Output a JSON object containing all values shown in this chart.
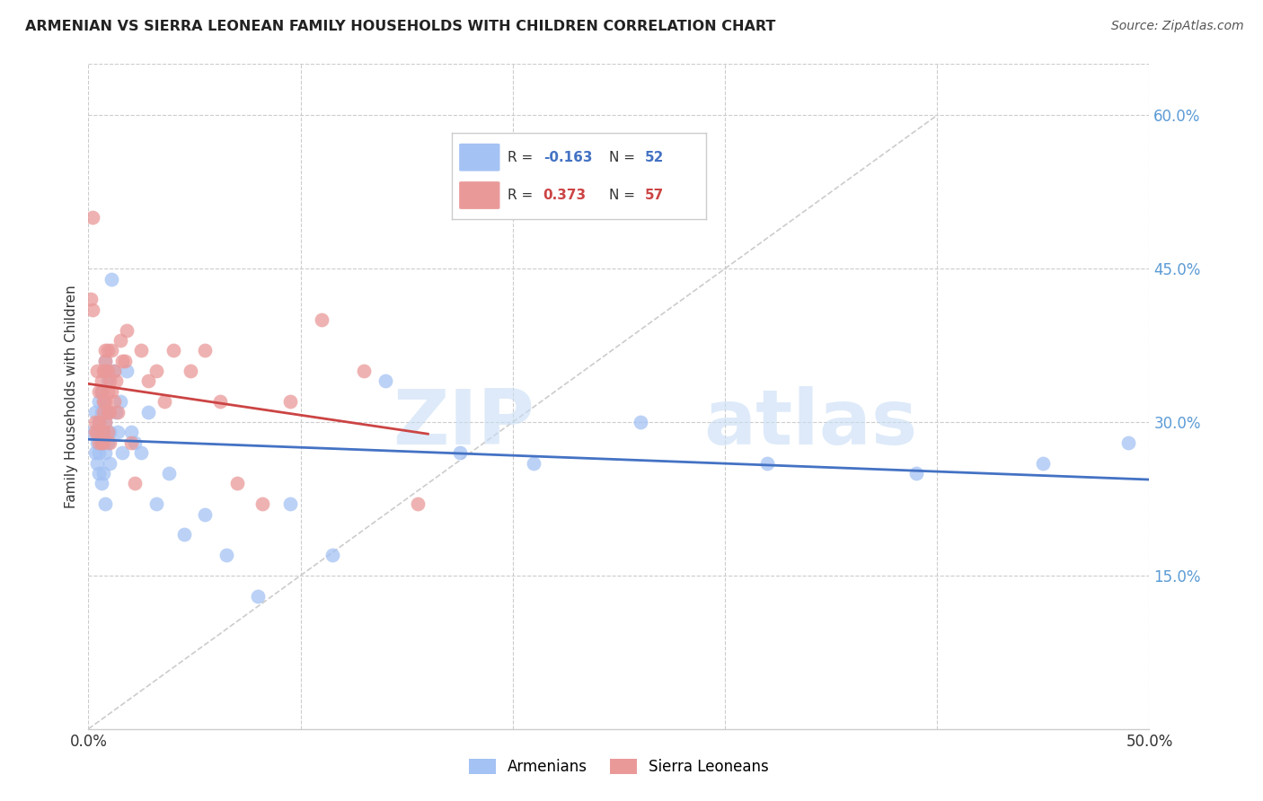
{
  "title": "ARMENIAN VS SIERRA LEONEAN FAMILY HOUSEHOLDS WITH CHILDREN CORRELATION CHART",
  "source": "Source: ZipAtlas.com",
  "ylabel": "Family Households with Children",
  "xlim": [
    0.0,
    0.5
  ],
  "ylim": [
    0.0,
    0.65
  ],
  "xtick_positions": [
    0.0,
    0.1,
    0.2,
    0.3,
    0.4,
    0.5
  ],
  "xtick_labels": [
    "0.0%",
    "",
    "",
    "",
    "",
    "50.0%"
  ],
  "ytick_vals": [
    0.15,
    0.3,
    0.45,
    0.6
  ],
  "ytick_labels": [
    "15.0%",
    "30.0%",
    "45.0%",
    "60.0%"
  ],
  "background_color": "#ffffff",
  "grid_color": "#cccccc",
  "watermark_line1": "ZIP",
  "watermark_line2": "atlas",
  "watermark_color": "#d8e8f5",
  "armenian_color": "#a4c2f4",
  "sierra_color": "#ea9999",
  "armenian_line_color": "#4472c4",
  "sierra_line_color": "#cc4444",
  "ref_line_color": "#cccccc",
  "legend_r_armenian": "-0.163",
  "legend_n_armenian": "52",
  "legend_r_sierra": "0.373",
  "legend_n_sierra": "57",
  "armenian_x": [
    0.002,
    0.003,
    0.003,
    0.004,
    0.004,
    0.005,
    0.005,
    0.005,
    0.005,
    0.006,
    0.006,
    0.006,
    0.006,
    0.007,
    0.007,
    0.007,
    0.008,
    0.008,
    0.008,
    0.008,
    0.009,
    0.009,
    0.009,
    0.01,
    0.01,
    0.011,
    0.012,
    0.013,
    0.014,
    0.015,
    0.016,
    0.018,
    0.02,
    0.022,
    0.025,
    0.028,
    0.032,
    0.038,
    0.045,
    0.055,
    0.065,
    0.08,
    0.095,
    0.115,
    0.14,
    0.175,
    0.21,
    0.26,
    0.32,
    0.39,
    0.45,
    0.49
  ],
  "armenian_y": [
    0.29,
    0.27,
    0.31,
    0.26,
    0.28,
    0.25,
    0.27,
    0.3,
    0.32,
    0.24,
    0.28,
    0.31,
    0.33,
    0.25,
    0.29,
    0.32,
    0.22,
    0.27,
    0.3,
    0.36,
    0.28,
    0.31,
    0.34,
    0.26,
    0.29,
    0.44,
    0.35,
    0.31,
    0.29,
    0.32,
    0.27,
    0.35,
    0.29,
    0.28,
    0.27,
    0.31,
    0.22,
    0.25,
    0.19,
    0.21,
    0.17,
    0.13,
    0.22,
    0.17,
    0.34,
    0.27,
    0.26,
    0.3,
    0.26,
    0.25,
    0.26,
    0.28
  ],
  "sierra_x": [
    0.001,
    0.002,
    0.002,
    0.003,
    0.003,
    0.004,
    0.004,
    0.005,
    0.005,
    0.005,
    0.006,
    0.006,
    0.006,
    0.007,
    0.007,
    0.007,
    0.007,
    0.007,
    0.008,
    0.008,
    0.008,
    0.008,
    0.008,
    0.009,
    0.009,
    0.009,
    0.009,
    0.009,
    0.01,
    0.01,
    0.01,
    0.011,
    0.011,
    0.012,
    0.012,
    0.013,
    0.014,
    0.015,
    0.016,
    0.017,
    0.018,
    0.02,
    0.022,
    0.025,
    0.028,
    0.032,
    0.036,
    0.04,
    0.048,
    0.055,
    0.062,
    0.07,
    0.082,
    0.095,
    0.11,
    0.13,
    0.155
  ],
  "sierra_y": [
    0.42,
    0.5,
    0.41,
    0.29,
    0.3,
    0.29,
    0.35,
    0.28,
    0.33,
    0.3,
    0.28,
    0.33,
    0.34,
    0.28,
    0.31,
    0.32,
    0.29,
    0.35,
    0.3,
    0.32,
    0.35,
    0.37,
    0.36,
    0.29,
    0.31,
    0.33,
    0.35,
    0.37,
    0.28,
    0.31,
    0.34,
    0.33,
    0.37,
    0.32,
    0.35,
    0.34,
    0.31,
    0.38,
    0.36,
    0.36,
    0.39,
    0.28,
    0.24,
    0.37,
    0.34,
    0.35,
    0.32,
    0.37,
    0.35,
    0.37,
    0.32,
    0.24,
    0.22,
    0.32,
    0.4,
    0.35,
    0.22
  ]
}
